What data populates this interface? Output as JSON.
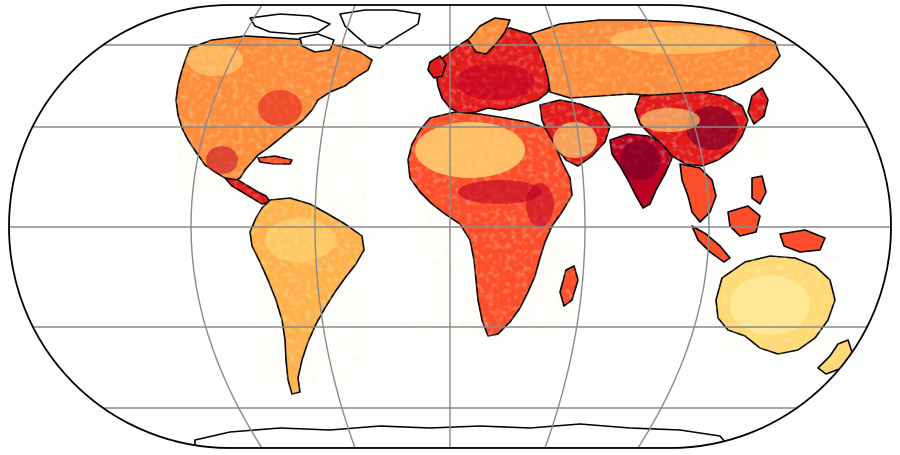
{
  "figure": {
    "projection": "eckert-iv",
    "graticule": true,
    "colors": {
      "background": "#ffffff",
      "ocean": "#ffffff",
      "graticule": "#8a8a8a",
      "coastline": "#000000",
      "outline": "#000000"
    },
    "colormap": {
      "name": "YlOrRd",
      "stops": [
        "#ffffcc",
        "#ffeda0",
        "#fed976",
        "#feb24c",
        "#fd8d3c",
        "#fc4e2a",
        "#e31a1c",
        "#bd0026",
        "#800026"
      ]
    },
    "regions": [
      {
        "name": "north-america",
        "intensity": "medium-high"
      },
      {
        "name": "central-america",
        "intensity": "high"
      },
      {
        "name": "south-america",
        "intensity": "medium"
      },
      {
        "name": "greenland",
        "intensity": "none"
      },
      {
        "name": "europe",
        "intensity": "high"
      },
      {
        "name": "russia",
        "intensity": "medium-high"
      },
      {
        "name": "africa",
        "intensity": "medium-high"
      },
      {
        "name": "sahara",
        "intensity": "low"
      },
      {
        "name": "middle-east",
        "intensity": "high"
      },
      {
        "name": "india",
        "intensity": "very-high"
      },
      {
        "name": "china",
        "intensity": "very-high"
      },
      {
        "name": "southeast-asia",
        "intensity": "high"
      },
      {
        "name": "australia",
        "intensity": "low"
      },
      {
        "name": "antarctica",
        "intensity": "none"
      }
    ]
  }
}
